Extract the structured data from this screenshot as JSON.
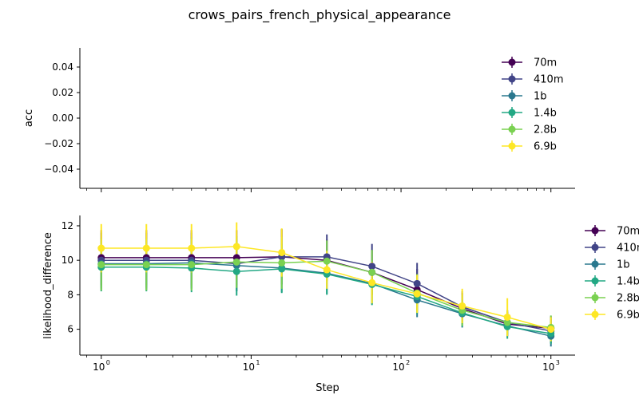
{
  "chart_data": {
    "title": "crows_pairs_french_physical_appearance",
    "type": "line",
    "x_scale": "log",
    "xlabel": "Step",
    "x": [
      1,
      2,
      4,
      8,
      16,
      32,
      64,
      128,
      256,
      512,
      1000
    ],
    "series_names": [
      "70m",
      "410m",
      "1b",
      "1.4b",
      "2.8b",
      "6.9b"
    ],
    "colors": [
      "#440154",
      "#414487",
      "#2a788e",
      "#22a884",
      "#7ad151",
      "#fde725"
    ],
    "top": {
      "ylabel": "acc",
      "ylim": [
        -0.055,
        0.055
      ],
      "yticks": [
        "0.04",
        "0.02",
        "0.00",
        "−0.02",
        "−0.04"
      ],
      "legend_position": "upper-right"
    },
    "bottom": {
      "ylabel": "likelihood_difference",
      "ylim": [
        4.5,
        12.6
      ],
      "yticks": [
        "6",
        "8",
        "10",
        "12"
      ],
      "legend_position": "right, outside",
      "series": [
        {
          "name": "70m",
          "values": [
            10.15,
            10.15,
            10.15,
            10.15,
            10.2,
            10.0,
            9.3,
            8.3,
            7.2,
            6.3,
            6.05
          ],
          "err": [
            1.6,
            1.6,
            1.6,
            1.6,
            1.6,
            1.2,
            1.3,
            1.2,
            0.9,
            0.7,
            0.7
          ]
        },
        {
          "name": "410m",
          "values": [
            10.0,
            10.0,
            10.0,
            9.8,
            10.2,
            10.2,
            9.65,
            8.65,
            7.3,
            6.4,
            5.9
          ],
          "err": [
            1.6,
            1.6,
            1.6,
            1.6,
            1.6,
            1.3,
            1.3,
            1.2,
            0.9,
            0.7,
            0.7
          ]
        },
        {
          "name": "1b",
          "values": [
            9.8,
            9.8,
            9.85,
            9.7,
            9.55,
            9.25,
            8.65,
            7.7,
            6.9,
            6.2,
            5.6
          ],
          "err": [
            1.5,
            1.5,
            1.5,
            1.5,
            1.4,
            1.2,
            1.2,
            1.0,
            0.8,
            0.6,
            0.6
          ]
        },
        {
          "name": "1.4b",
          "values": [
            9.6,
            9.6,
            9.55,
            9.35,
            9.5,
            9.2,
            8.6,
            7.9,
            6.95,
            6.15,
            5.75
          ],
          "err": [
            1.4,
            1.4,
            1.4,
            1.4,
            1.4,
            1.2,
            1.2,
            1.0,
            0.8,
            0.7,
            0.6
          ]
        },
        {
          "name": "2.8b",
          "values": [
            9.75,
            9.75,
            9.75,
            9.9,
            9.85,
            9.95,
            9.3,
            8.1,
            7.1,
            6.4,
            6.1
          ],
          "err": [
            1.5,
            1.5,
            1.5,
            1.5,
            1.5,
            1.2,
            1.3,
            1.1,
            0.9,
            0.7,
            0.7
          ]
        },
        {
          "name": "6.9b",
          "values": [
            10.7,
            10.7,
            10.7,
            10.8,
            10.45,
            9.45,
            8.7,
            8.05,
            7.35,
            6.7,
            6.0
          ],
          "err": [
            1.4,
            1.4,
            1.4,
            1.4,
            1.4,
            1.1,
            1.2,
            1.1,
            1.0,
            1.1,
            0.7
          ]
        }
      ]
    }
  }
}
